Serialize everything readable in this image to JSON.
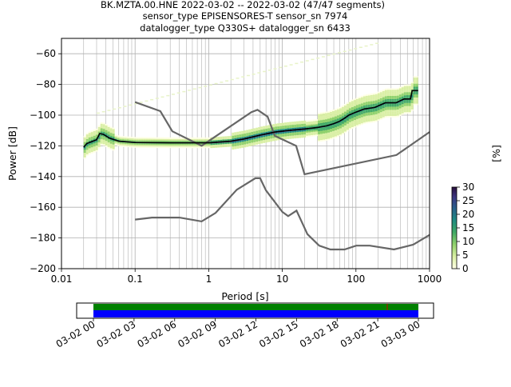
{
  "chart_data": {
    "type": "heatmap",
    "title_lines": [
      "BK.MZTA.00.HNE   2022-03-02 -- 2022-03-02  (47/47 segments)",
      "sensor_type EPISENSORES-T sensor_sn 7974",
      "datalogger_type Q330S+ datalogger_sn 6433"
    ],
    "xlabel": "Period [s]",
    "ylabel": "Power [dB]",
    "xscale": "log",
    "xlim": [
      0.01,
      1000
    ],
    "ylim": [
      -200,
      -50
    ],
    "x_ticks": [
      0.01,
      0.1,
      1,
      10,
      100,
      1000
    ],
    "x_tick_labels": [
      "0.01",
      "0.1",
      "1",
      "10",
      "100",
      "1000"
    ],
    "y_ticks": [
      -200,
      -180,
      -160,
      -140,
      -120,
      -100,
      -80,
      -60
    ],
    "y_tick_labels": [
      "−200",
      "−180",
      "−160",
      "−140",
      "−120",
      "−100",
      "−80",
      "−60"
    ],
    "grid": true,
    "colorbar": {
      "label": "[%]",
      "range": [
        0,
        30
      ],
      "ticks": [
        0,
        5,
        10,
        15,
        20,
        25,
        30
      ],
      "tick_labels": [
        "0",
        "5",
        "10",
        "15",
        "20",
        "25",
        "30"
      ]
    },
    "series": [
      {
        "role": "noise-model-high",
        "color": "#666666",
        "points": [
          [
            0.1,
            -91.5
          ],
          [
            0.22,
            -97.4
          ],
          [
            0.32,
            -110.5
          ],
          [
            0.8,
            -120
          ],
          [
            3.8,
            -98
          ],
          [
            4.6,
            -96.5
          ],
          [
            6.3,
            -101
          ],
          [
            7.9,
            -113.5
          ],
          [
            15.4,
            -120
          ],
          [
            20,
            -138.5
          ],
          [
            354.8,
            -126
          ],
          [
            1000,
            -111
          ]
        ]
      },
      {
        "role": "noise-model-low",
        "color": "#666666",
        "points": [
          [
            0.1,
            -168
          ],
          [
            0.17,
            -166.7
          ],
          [
            0.4,
            -166.7
          ],
          [
            0.8,
            -169.2
          ],
          [
            1.24,
            -163.7
          ],
          [
            2.4,
            -148.6
          ],
          [
            4.3,
            -141.1
          ],
          [
            5.0,
            -141.1
          ],
          [
            6.0,
            -149
          ],
          [
            10,
            -163
          ],
          [
            12,
            -165.8
          ],
          [
            15.6,
            -162.2
          ],
          [
            21.9,
            -177.5
          ],
          [
            31.6,
            -185
          ],
          [
            45,
            -187.5
          ],
          [
            70,
            -187.5
          ],
          [
            101,
            -185
          ],
          [
            154,
            -185
          ],
          [
            328,
            -187.5
          ],
          [
            600,
            -184.4
          ],
          [
            1000,
            -178
          ]
        ]
      },
      {
        "role": "mean-curve",
        "color": "#000000",
        "points": [
          [
            0.02,
            -121
          ],
          [
            0.022,
            -118.5
          ],
          [
            0.025,
            -117.5
          ],
          [
            0.03,
            -116
          ],
          [
            0.033,
            -112
          ],
          [
            0.037,
            -112.5
          ],
          [
            0.045,
            -115
          ],
          [
            0.06,
            -117
          ],
          [
            0.1,
            -117.8
          ],
          [
            0.3,
            -118
          ],
          [
            1,
            -118
          ],
          [
            2,
            -117
          ],
          [
            3,
            -115.5
          ],
          [
            5,
            -113
          ],
          [
            8,
            -111
          ],
          [
            12,
            -110
          ],
          [
            20,
            -109
          ],
          [
            30,
            -108
          ],
          [
            40,
            -107
          ],
          [
            50,
            -105.5
          ],
          [
            60,
            -104
          ],
          [
            70,
            -102
          ],
          [
            80,
            -100
          ],
          [
            100,
            -98
          ],
          [
            130,
            -96
          ],
          [
            180,
            -95
          ],
          [
            250,
            -92
          ],
          [
            350,
            -92
          ],
          [
            450,
            -89.5
          ],
          [
            550,
            -89.5
          ],
          [
            580,
            -84
          ],
          [
            700,
            -84
          ]
        ]
      }
    ],
    "timeline": {
      "tick_labels": [
        "03-02 00",
        "03-02 03",
        "03-02 06",
        "03-02 09",
        "03-02 12",
        "03-02 15",
        "03-02 18",
        "03-02 21",
        "03-03 00"
      ],
      "bar_colors": [
        "#008000",
        "#0000ff"
      ]
    }
  }
}
